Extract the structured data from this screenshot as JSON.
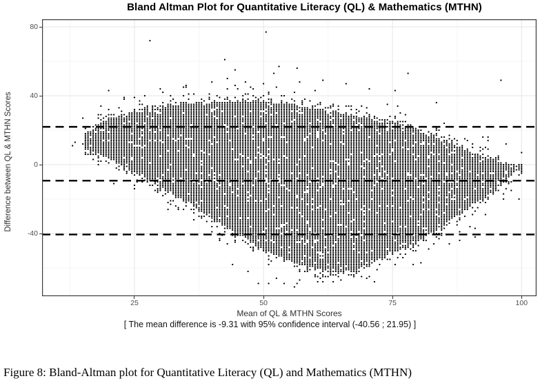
{
  "figure": {
    "caption": "Figure 8: Bland-Altman plot for Quantitative Literacy (QL) and Mathematics (MTHN)"
  },
  "chart_data": {
    "type": "scatter",
    "title": "Bland Altman Plot for Quantitative Literacy (QL) & Mathematics (MTHN)",
    "xlabel": "Mean of QL & MTHN Scores",
    "ylabel": "Difference between QL & MTHN Scores",
    "footnote": "[ The mean difference is -9.31 with 95% confidence interval (-40.56 ; 21.95) ]",
    "stats": {
      "mean_difference": -9.31,
      "ci_level": "95%",
      "ci_lower": -40.56,
      "ci_upper": 21.95
    },
    "x_domain": [
      7.1,
      102.9
    ],
    "y_domain": [
      -76.4,
      84.4
    ],
    "x_ticks": [
      {
        "label": "25",
        "value": 25
      },
      {
        "label": "50",
        "value": 50
      },
      {
        "label": "75",
        "value": 75
      },
      {
        "label": "100",
        "value": 100
      }
    ],
    "y_ticks": [
      {
        "label": "80",
        "value": 80
      },
      {
        "label": "40",
        "value": 40
      },
      {
        "label": "0",
        "value": 0
      },
      {
        "label": "-40",
        "value": -40
      }
    ],
    "x_minor_ticks": [
      12.5,
      37.5,
      62.5,
      87.5
    ],
    "y_minor_ticks": [
      60,
      20,
      -20,
      -60
    ],
    "reference_lines": [
      {
        "name": "upper-limit",
        "value": 21.95,
        "style": "dashed"
      },
      {
        "name": "mean-difference",
        "value": -9.31,
        "style": "dashed"
      },
      {
        "name": "lower-limit",
        "value": -40.56,
        "style": "dashed"
      }
    ],
    "point_cloud": {
      "description": "dense diamond-shaped cloud of integer-score Bland-Altman points",
      "seed": 42,
      "lattice": {
        "x_start": 13,
        "x_end": 100.5,
        "x_step": 0.5,
        "y_start": -72,
        "y_end": 80,
        "y_step": 1
      },
      "cloud_x_min": 15.5,
      "cloud_x_max": 100,
      "core_probability": 0.94,
      "top_edge": [
        [
          16,
          18
        ],
        [
          20,
          26
        ],
        [
          25,
          30
        ],
        [
          32,
          34
        ],
        [
          40,
          36
        ],
        [
          48,
          37
        ],
        [
          55,
          35
        ],
        [
          62,
          31
        ],
        [
          70,
          27
        ],
        [
          78,
          21
        ],
        [
          85,
          14
        ],
        [
          92,
          5
        ],
        [
          96,
          1
        ],
        [
          99,
          -1
        ]
      ],
      "bottom_edge": [
        [
          16,
          9
        ],
        [
          20,
          4
        ],
        [
          26,
          -5
        ],
        [
          33,
          -18
        ],
        [
          41,
          -33
        ],
        [
          50,
          -49
        ],
        [
          57,
          -58
        ],
        [
          63,
          -62
        ],
        [
          68,
          -61
        ],
        [
          73,
          -54
        ],
        [
          79,
          -46
        ],
        [
          85,
          -35
        ],
        [
          90,
          -24
        ],
        [
          94,
          -16
        ],
        [
          97,
          -9
        ],
        [
          99,
          -3
        ]
      ],
      "fringe": {
        "near_amp": 0.5,
        "near_scale_top": 3.0,
        "near_scale_bottom": 3.2,
        "far_amp_top": 0.018,
        "far_scale_top": 9.0,
        "far_amp_bottom": 0.012,
        "far_scale_bottom": 7.0
      },
      "outliers": [
        [
          50.5,
          77
        ],
        [
          42.5,
          61
        ],
        [
          44.5,
          55
        ],
        [
          56.5,
          56
        ],
        [
          52,
          53
        ],
        [
          40,
          48
        ],
        [
          43,
          50
        ],
        [
          61.5,
          49
        ],
        [
          66,
          47
        ],
        [
          70.5,
          44
        ],
        [
          75.5,
          43
        ],
        [
          35,
          46
        ],
        [
          13.5,
          13
        ],
        [
          15,
          12
        ],
        [
          15,
          27
        ],
        [
          13,
          11
        ],
        [
          56.5,
          -69
        ],
        [
          47,
          -62
        ],
        [
          61,
          -66
        ],
        [
          44,
          -58
        ],
        [
          67,
          -64
        ],
        [
          52.5,
          -66
        ]
      ],
      "point_radius_px": 1.15
    },
    "style": {
      "point_color": "#000000",
      "reference_line_color": "#000000",
      "reference_line_width": 2.4,
      "reference_line_dash": [
        12,
        7.5
      ],
      "panel_background": "#ffffff",
      "panel_border_color": "#3a3a3a",
      "grid_major_color": "#e9e9e9",
      "grid_minor_color": "#f5f5f5",
      "tick_label_color": "#4d4d4d",
      "grid": "on",
      "legend": "none"
    }
  }
}
